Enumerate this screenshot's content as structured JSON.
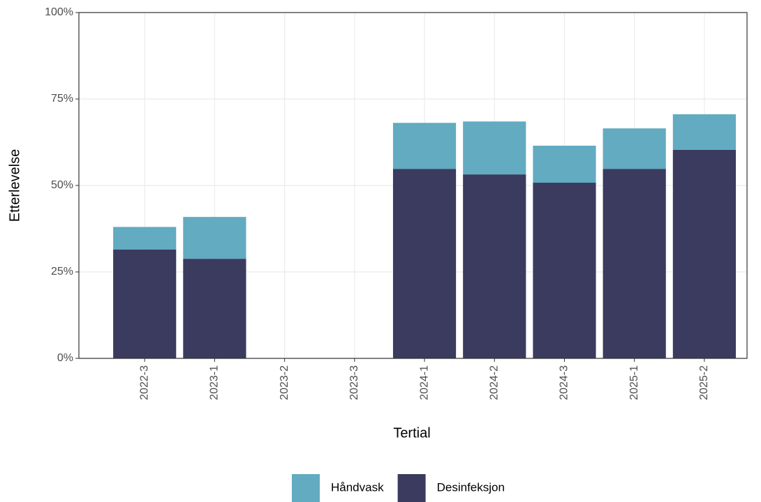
{
  "chart_data": {
    "type": "bar",
    "stacked": true,
    "x_label": "Tertial",
    "y_label": "Etterlevelse",
    "categories": [
      "2022-3",
      "2023-1",
      "2023-2",
      "2023-3",
      "2024-1",
      "2024-2",
      "2024-3",
      "2025-1",
      "2025-2"
    ],
    "series": [
      {
        "name": "Håndvask",
        "color": "#62abc1",
        "values": [
          6.5,
          12.1,
          null,
          null,
          13.3,
          15.3,
          10.7,
          11.7,
          10.3
        ]
      },
      {
        "name": "Desinfeksjon",
        "color": "#3a3b5e",
        "values": [
          31.5,
          28.8,
          null,
          null,
          54.8,
          53.2,
          50.8,
          54.8,
          60.3
        ]
      }
    ],
    "ylim": [
      0,
      100
    ],
    "yticks": [
      {
        "value": 0,
        "label": "0%"
      },
      {
        "value": 25,
        "label": "25%"
      },
      {
        "value": 50,
        "label": "50%"
      },
      {
        "value": 75,
        "label": "75%"
      },
      {
        "value": 100,
        "label": "100%"
      }
    ],
    "grid": true,
    "legend": "bottom"
  }
}
